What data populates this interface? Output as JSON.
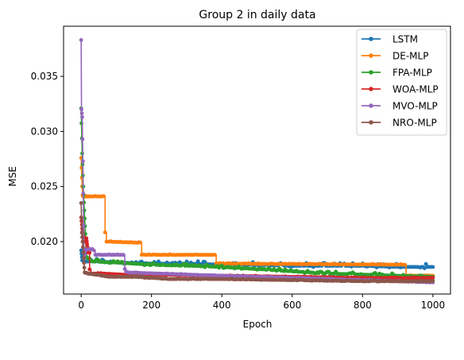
{
  "chart_data": {
    "type": "line",
    "title": "Group 2 in daily data",
    "xlabel": "Epoch",
    "ylabel": "MSE",
    "xlim": [
      -50,
      1050
    ],
    "ylim": [
      0.01524,
      0.03955
    ],
    "xticks": [
      0,
      200,
      400,
      600,
      800,
      1000
    ],
    "yticks": [
      0.02,
      0.025,
      0.03,
      0.035
    ],
    "ytick_labels": [
      "0.020",
      "0.025",
      "0.030",
      "0.035"
    ],
    "legend": "top-right",
    "series": [
      {
        "name": "LSTM",
        "color": "#1f77b4",
        "x": [
          0,
          3,
          10,
          40,
          100,
          200,
          300,
          400,
          500,
          600,
          700,
          800,
          900,
          1000
        ],
        "y": [
          0.0192,
          0.0183,
          0.0182,
          0.0182,
          0.0181,
          0.018,
          0.018,
          0.0179,
          0.0179,
          0.0178,
          0.0178,
          0.0178,
          0.0177,
          0.0177
        ],
        "noise": 0.00025
      },
      {
        "name": "DE-MLP",
        "color": "#ff7f0e",
        "x": [
          0,
          2,
          4,
          6,
          8,
          12,
          65,
          66,
          70,
          168,
          172,
          380,
          382,
          920,
          922,
          1000
        ],
        "y": [
          0.0276,
          0.0258,
          0.0242,
          0.0241,
          0.0241,
          0.0241,
          0.0241,
          0.0217,
          0.02,
          0.0199,
          0.0188,
          0.0188,
          0.018,
          0.0179,
          0.0169,
          0.0169
        ],
        "noise": 5e-05
      },
      {
        "name": "FPA-MLP",
        "color": "#2ca02c",
        "x": [
          0,
          3,
          6,
          10,
          15,
          30,
          100,
          200,
          300,
          400,
          500,
          600,
          700,
          800,
          900,
          1000
        ],
        "y": [
          0.0321,
          0.028,
          0.025,
          0.0221,
          0.0186,
          0.0182,
          0.0181,
          0.0179,
          0.0178,
          0.0177,
          0.0175,
          0.0173,
          0.0171,
          0.017,
          0.0169,
          0.0168
        ],
        "noise": 0.00018
      },
      {
        "name": "WOA-MLP",
        "color": "#d62728",
        "x": [
          0,
          3,
          6,
          10,
          15,
          20,
          25,
          60,
          120,
          200,
          400,
          600,
          800,
          1000
        ],
        "y": [
          0.0222,
          0.0212,
          0.0205,
          0.02,
          0.0203,
          0.019,
          0.0171,
          0.0171,
          0.017,
          0.017,
          0.0169,
          0.0168,
          0.0167,
          0.0167
        ],
        "noise": 4e-05
      },
      {
        "name": "MVO-MLP",
        "color": "#9467bd",
        "x": [
          0,
          1,
          3,
          5,
          8,
          12,
          20,
          35,
          40,
          80,
          120,
          125,
          400,
          600,
          800,
          1000
        ],
        "y": [
          0.0383,
          0.032,
          0.0313,
          0.0273,
          0.0185,
          0.0193,
          0.0193,
          0.0193,
          0.0188,
          0.0188,
          0.0188,
          0.0172,
          0.0169,
          0.0167,
          0.0165,
          0.0163
        ],
        "noise": 4e-05
      },
      {
        "name": "NRO-MLP",
        "color": "#8c564b",
        "x": [
          0,
          2,
          4,
          7,
          10,
          20,
          80,
          150,
          250,
          400,
          600,
          800,
          1000
        ],
        "y": [
          0.0235,
          0.0208,
          0.02,
          0.0185,
          0.0172,
          0.0171,
          0.0168,
          0.0168,
          0.0166,
          0.0166,
          0.0165,
          0.0164,
          0.0164
        ],
        "noise": 6e-05
      }
    ]
  }
}
